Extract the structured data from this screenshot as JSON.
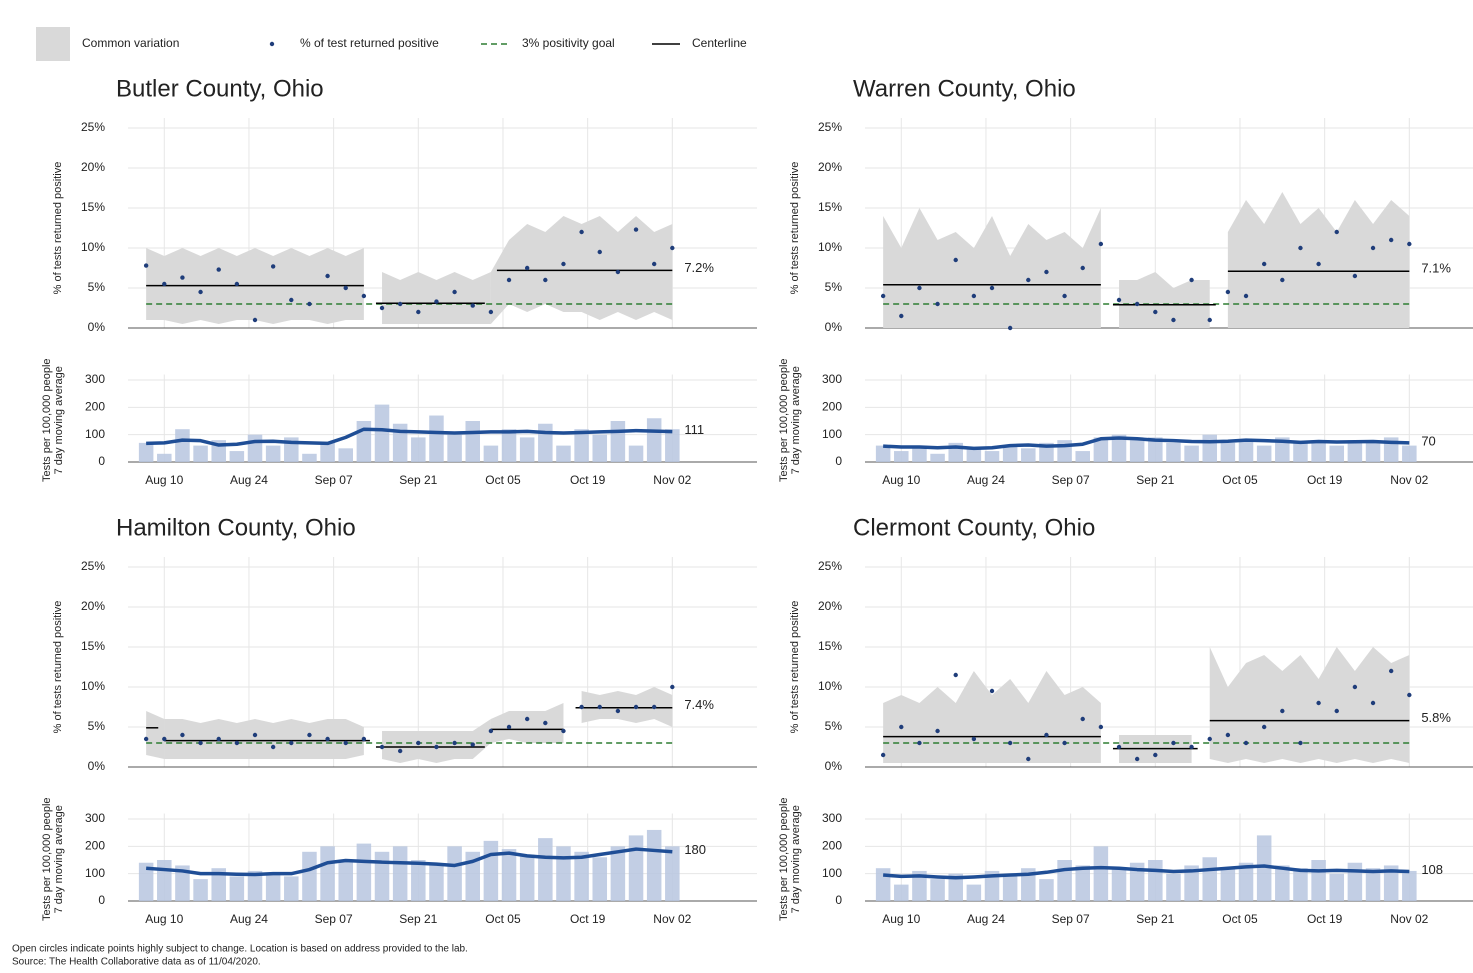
{
  "legend": [
    "Common variation",
    "% of test returned positive",
    "3% positivity goal",
    "Centerline"
  ],
  "style": {
    "band": "#d9d9d9",
    "point": "#1f3d7a",
    "goal": "#2e7d32",
    "centerline": "#000000",
    "bar": "#b7c5df",
    "average": "#1f4e96",
    "grid": "#e6e6e6"
  },
  "chart_data": [
    {
      "type": "control",
      "title": "Butler County, Ohio",
      "x": [
        -3,
        0,
        3,
        6,
        9,
        12,
        15,
        18,
        21,
        24,
        27,
        30,
        33,
        36,
        39,
        42,
        45,
        48,
        51,
        54,
        57,
        60,
        63,
        66,
        69,
        72,
        75,
        78,
        81,
        84
      ],
      "xlim": [
        -6,
        98
      ],
      "xticks": [
        {
          "value": 0,
          "label": "Aug 10"
        },
        {
          "value": 14,
          "label": "Aug 24"
        },
        {
          "value": 28,
          "label": "Sep 07"
        },
        {
          "value": 42,
          "label": "Sep 21"
        },
        {
          "value": 56,
          "label": "Oct 05"
        },
        {
          "value": 70,
          "label": "Oct 19"
        },
        {
          "value": 84,
          "label": "Nov 02"
        }
      ],
      "top": {
        "ylabel": "% of tests returned positive",
        "ylim": [
          0,
          25
        ],
        "yticks": [
          {
            "value": 0,
            "label": "0%"
          },
          {
            "value": 5,
            "label": "5%"
          },
          {
            "value": 10,
            "label": "10%"
          },
          {
            "value": 15,
            "label": "15%"
          },
          {
            "value": 20,
            "label": "20%"
          },
          {
            "value": 25,
            "label": "25%"
          }
        ],
        "values": [
          7.8,
          5.5,
          6.3,
          4.5,
          7.3,
          5.5,
          1.0,
          7.7,
          3.5,
          3.0,
          6.5,
          5.0,
          4.0,
          2.5,
          3.0,
          2.0,
          3.3,
          4.5,
          2.8,
          2.0,
          6.0,
          7.5,
          6.0,
          8.0,
          12.0,
          9.5,
          7.0,
          12.3,
          8.0,
          10.0
        ],
        "upper": [
          10,
          9,
          10,
          9,
          10,
          9,
          10,
          9,
          10,
          9,
          10,
          9,
          10,
          7,
          6,
          7,
          6,
          7,
          6,
          7,
          11,
          13,
          12,
          14,
          13,
          14,
          12,
          14,
          12,
          13
        ],
        "lower": [
          1,
          1,
          0.5,
          1,
          0.5,
          1,
          1,
          0.5,
          1,
          1,
          0.5,
          1,
          1,
          0.5,
          0.5,
          0.5,
          0.5,
          0.5,
          0.5,
          0.5,
          3,
          2,
          3,
          2,
          2,
          1,
          2,
          1,
          2,
          1
        ],
        "centerlines": [
          {
            "start": -3,
            "end": 33,
            "value": 5.3
          },
          {
            "start": 35,
            "end": 53,
            "value": 3.1
          },
          {
            "start": 55,
            "end": 84,
            "value": 7.2
          }
        ],
        "centerline_label": "7.2%",
        "goal": 3
      },
      "bottom": {
        "ylabel": [
          "Tests per 100,000 people",
          "7 day moving average"
        ],
        "ylim": [
          0,
          320
        ],
        "yticks": [
          0,
          100,
          200,
          300
        ],
        "bars": [
          70,
          30,
          120,
          60,
          80,
          40,
          100,
          60,
          90,
          30,
          70,
          50,
          150,
          210,
          140,
          90,
          170,
          100,
          150,
          60,
          120,
          90,
          140,
          60,
          120,
          100,
          150,
          60,
          160,
          120
        ],
        "average": [
          68,
          70,
          80,
          78,
          62,
          65,
          75,
          76,
          72,
          70,
          68,
          90,
          120,
          118,
          112,
          110,
          108,
          106,
          108,
          110,
          110,
          112,
          108,
          106,
          108,
          110,
          112,
          115,
          113,
          111
        ]
      }
    },
    {
      "type": "control",
      "title": "Warren County, Ohio",
      "x": [
        -3,
        0,
        3,
        6,
        9,
        12,
        15,
        18,
        21,
        24,
        27,
        30,
        33,
        36,
        39,
        42,
        45,
        48,
        51,
        54,
        57,
        60,
        63,
        66,
        69,
        72,
        75,
        78,
        81,
        84
      ],
      "xlim": [
        -6,
        98
      ],
      "xticks": [
        {
          "value": 0,
          "label": "Aug 10"
        },
        {
          "value": 14,
          "label": "Aug 24"
        },
        {
          "value": 28,
          "label": "Sep 07"
        },
        {
          "value": 42,
          "label": "Sep 21"
        },
        {
          "value": 56,
          "label": "Oct 05"
        },
        {
          "value": 70,
          "label": "Oct 19"
        },
        {
          "value": 84,
          "label": "Nov 02"
        }
      ],
      "top": {
        "ylabel": "% of tests returned positive",
        "ylim": [
          0,
          25
        ],
        "yticks": [
          {
            "value": 0,
            "label": "0%"
          },
          {
            "value": 5,
            "label": "5%"
          },
          {
            "value": 10,
            "label": "10%"
          },
          {
            "value": 15,
            "label": "15%"
          },
          {
            "value": 20,
            "label": "20%"
          },
          {
            "value": 25,
            "label": "25%"
          }
        ],
        "values": [
          4,
          1.5,
          5,
          3,
          8.5,
          4,
          5,
          0,
          6,
          7,
          4,
          7.5,
          10.5,
          3.5,
          3,
          2,
          1,
          6,
          1,
          4.5,
          4,
          8,
          6,
          10,
          8,
          12,
          6.5,
          10,
          11,
          10.5
        ],
        "upper": [
          14,
          10,
          15,
          11,
          12,
          10,
          14,
          9,
          13,
          11,
          12,
          10,
          15,
          6,
          6,
          7,
          5,
          6,
          6,
          12,
          16,
          13,
          17,
          13,
          15,
          12,
          16,
          13,
          16,
          14
        ],
        "lower": [
          0,
          0,
          0,
          0,
          0,
          0,
          0,
          0,
          0,
          0,
          0,
          0,
          0,
          0,
          0,
          0,
          0,
          0,
          0,
          0,
          0,
          0,
          0,
          0,
          0,
          0,
          0,
          0,
          0,
          0
        ],
        "centerlines": [
          {
            "start": -3,
            "end": 33,
            "value": 5.4
          },
          {
            "start": 35,
            "end": 52,
            "value": 2.9
          },
          {
            "start": 54,
            "end": 84,
            "value": 7.1
          }
        ],
        "centerline_label": "7.1%",
        "goal": 3
      },
      "bottom": {
        "ylabel": [
          "Tests per 100,000 people",
          "7 day moving average"
        ],
        "ylim": [
          0,
          320
        ],
        "yticks": [
          0,
          100,
          200,
          300
        ],
        "bars": [
          60,
          40,
          60,
          30,
          70,
          50,
          40,
          60,
          50,
          70,
          80,
          40,
          90,
          100,
          80,
          90,
          70,
          60,
          100,
          70,
          80,
          60,
          90,
          70,
          80,
          60,
          80,
          70,
          90,
          60
        ],
        "average": [
          58,
          55,
          55,
          52,
          55,
          50,
          52,
          60,
          62,
          58,
          60,
          65,
          85,
          88,
          85,
          80,
          78,
          75,
          74,
          76,
          80,
          78,
          76,
          72,
          75,
          73,
          74,
          75,
          72,
          70
        ]
      }
    },
    {
      "type": "control",
      "title": "Hamilton County, Ohio",
      "x": [
        -3,
        0,
        3,
        6,
        9,
        12,
        15,
        18,
        21,
        24,
        27,
        30,
        33,
        36,
        39,
        42,
        45,
        48,
        51,
        54,
        57,
        60,
        63,
        66,
        69,
        72,
        75,
        78,
        81,
        84
      ],
      "xlim": [
        -6,
        98
      ],
      "xticks": [
        {
          "value": 0,
          "label": "Aug 10"
        },
        {
          "value": 14,
          "label": "Aug 24"
        },
        {
          "value": 28,
          "label": "Sep 07"
        },
        {
          "value": 42,
          "label": "Sep 21"
        },
        {
          "value": 56,
          "label": "Oct 05"
        },
        {
          "value": 70,
          "label": "Oct 19"
        },
        {
          "value": 84,
          "label": "Nov 02"
        }
      ],
      "top": {
        "ylabel": "% of tests returned positive",
        "ylim": [
          0,
          25
        ],
        "yticks": [
          {
            "value": 0,
            "label": "0%"
          },
          {
            "value": 5,
            "label": "5%"
          },
          {
            "value": 10,
            "label": "10%"
          },
          {
            "value": 15,
            "label": "15%"
          },
          {
            "value": 20,
            "label": "20%"
          },
          {
            "value": 25,
            "label": "25%"
          }
        ],
        "values": [
          3.5,
          3.5,
          4,
          3,
          3.5,
          3,
          4,
          2.5,
          3,
          4,
          3.5,
          3,
          3.5,
          2.5,
          2,
          3,
          2.5,
          3,
          2.8,
          4.5,
          5,
          6,
          5.5,
          4.5,
          7.5,
          7.5,
          7,
          7.5,
          7.5,
          10
        ],
        "upper": [
          7,
          6,
          6,
          5.5,
          6,
          5.5,
          6,
          5.5,
          6,
          5.5,
          6,
          6,
          5,
          4.5,
          4.5,
          4.5,
          4.5,
          4.5,
          4.5,
          6,
          7,
          7,
          7,
          8,
          9.5,
          9,
          9.5,
          9,
          10,
          9
        ],
        "lower": [
          1.5,
          1,
          1,
          1,
          1,
          1,
          1,
          1,
          1,
          1,
          1,
          1,
          1.5,
          1,
          0.5,
          1,
          0.5,
          1,
          1,
          3,
          3.5,
          3,
          3,
          3,
          5.5,
          6,
          6,
          5.5,
          6,
          5
        ],
        "centerlines": [
          {
            "start": -3,
            "end": -1,
            "value": 4.9
          },
          {
            "start": 0,
            "end": 34,
            "value": 3.3
          },
          {
            "start": 35,
            "end": 53,
            "value": 2.5
          },
          {
            "start": 54,
            "end": 66,
            "value": 4.7
          },
          {
            "start": 68,
            "end": 84,
            "value": 7.4
          }
        ],
        "centerline_label": "7.4%",
        "goal": 3
      },
      "bottom": {
        "ylabel": [
          "Tests per 100,000 people",
          "7 day moving average"
        ],
        "ylim": [
          0,
          320
        ],
        "yticks": [
          0,
          100,
          200,
          300
        ],
        "bars": [
          140,
          150,
          130,
          80,
          120,
          90,
          110,
          100,
          90,
          180,
          200,
          150,
          210,
          180,
          200,
          150,
          130,
          200,
          180,
          220,
          190,
          170,
          230,
          200,
          180,
          160,
          200,
          240,
          260,
          200
        ],
        "average": [
          120,
          115,
          110,
          100,
          100,
          98,
          97,
          100,
          100,
          115,
          140,
          148,
          145,
          142,
          140,
          138,
          135,
          130,
          145,
          170,
          175,
          165,
          160,
          158,
          160,
          170,
          180,
          190,
          185,
          180
        ]
      }
    },
    {
      "type": "control",
      "title": "Clermont County, Ohio",
      "x": [
        -3,
        0,
        3,
        6,
        9,
        12,
        15,
        18,
        21,
        24,
        27,
        30,
        33,
        36,
        39,
        42,
        45,
        48,
        51,
        54,
        57,
        60,
        63,
        66,
        69,
        72,
        75,
        78,
        81,
        84
      ],
      "xlim": [
        -6,
        98
      ],
      "xticks": [
        {
          "value": 0,
          "label": "Aug 10"
        },
        {
          "value": 14,
          "label": "Aug 24"
        },
        {
          "value": 28,
          "label": "Sep 07"
        },
        {
          "value": 42,
          "label": "Sep 21"
        },
        {
          "value": 56,
          "label": "Oct 05"
        },
        {
          "value": 70,
          "label": "Oct 19"
        },
        {
          "value": 84,
          "label": "Nov 02"
        }
      ],
      "top": {
        "ylabel": "% of tests returned positive",
        "ylim": [
          0,
          25
        ],
        "yticks": [
          {
            "value": 0,
            "label": "0%"
          },
          {
            "value": 5,
            "label": "5%"
          },
          {
            "value": 10,
            "label": "10%"
          },
          {
            "value": 15,
            "label": "15%"
          },
          {
            "value": 20,
            "label": "20%"
          },
          {
            "value": 25,
            "label": "25%"
          }
        ],
        "values": [
          1.5,
          5,
          3,
          4.5,
          11.5,
          3.5,
          9.5,
          3,
          1,
          4,
          3,
          6,
          5,
          2.5,
          1,
          1.5,
          3,
          2.5,
          3.5,
          4,
          3,
          5,
          7,
          3,
          8,
          7,
          10,
          8,
          12,
          9
        ],
        "upper": [
          8,
          9,
          8,
          10,
          8,
          12,
          9,
          11,
          8,
          12,
          9,
          10,
          8,
          4,
          4,
          4,
          4,
          4,
          15,
          10,
          13,
          14,
          12,
          14,
          11,
          15,
          12,
          15,
          13,
          14
        ],
        "lower": [
          0.5,
          0.5,
          0.5,
          0.5,
          0.5,
          0.5,
          0.5,
          0.5,
          0.5,
          0.5,
          0.5,
          0.5,
          0.5,
          0.5,
          0.5,
          0.5,
          0.5,
          0.5,
          1,
          0.5,
          1,
          0.5,
          1,
          0.5,
          1,
          0.5,
          1,
          0.5,
          1,
          0.5
        ],
        "centerlines": [
          {
            "start": -3,
            "end": 33,
            "value": 3.8
          },
          {
            "start": 35,
            "end": 49,
            "value": 2.3
          },
          {
            "start": 51,
            "end": 84,
            "value": 5.8
          }
        ],
        "centerline_label": "5.8%",
        "goal": 3
      },
      "bottom": {
        "ylabel": [
          "Tests per 100,000 people",
          "7 day moving average"
        ],
        "ylim": [
          0,
          320
        ],
        "yticks": [
          0,
          100,
          200,
          300
        ],
        "bars": [
          120,
          60,
          110,
          80,
          100,
          60,
          110,
          90,
          120,
          80,
          150,
          130,
          200,
          120,
          140,
          150,
          100,
          130,
          160,
          120,
          140,
          240,
          130,
          120,
          150,
          100,
          140,
          120,
          130,
          110
        ],
        "average": [
          95,
          90,
          92,
          88,
          85,
          88,
          92,
          95,
          98,
          105,
          115,
          120,
          122,
          120,
          115,
          112,
          108,
          110,
          115,
          120,
          125,
          128,
          120,
          112,
          110,
          112,
          110,
          108,
          110,
          108
        ]
      }
    }
  ],
  "notes": [
    "Open circles indicate points highly subject to change. Location is based on address provided to the lab.",
    "Source: The Health Collaborative data as of 11/04/2020."
  ]
}
